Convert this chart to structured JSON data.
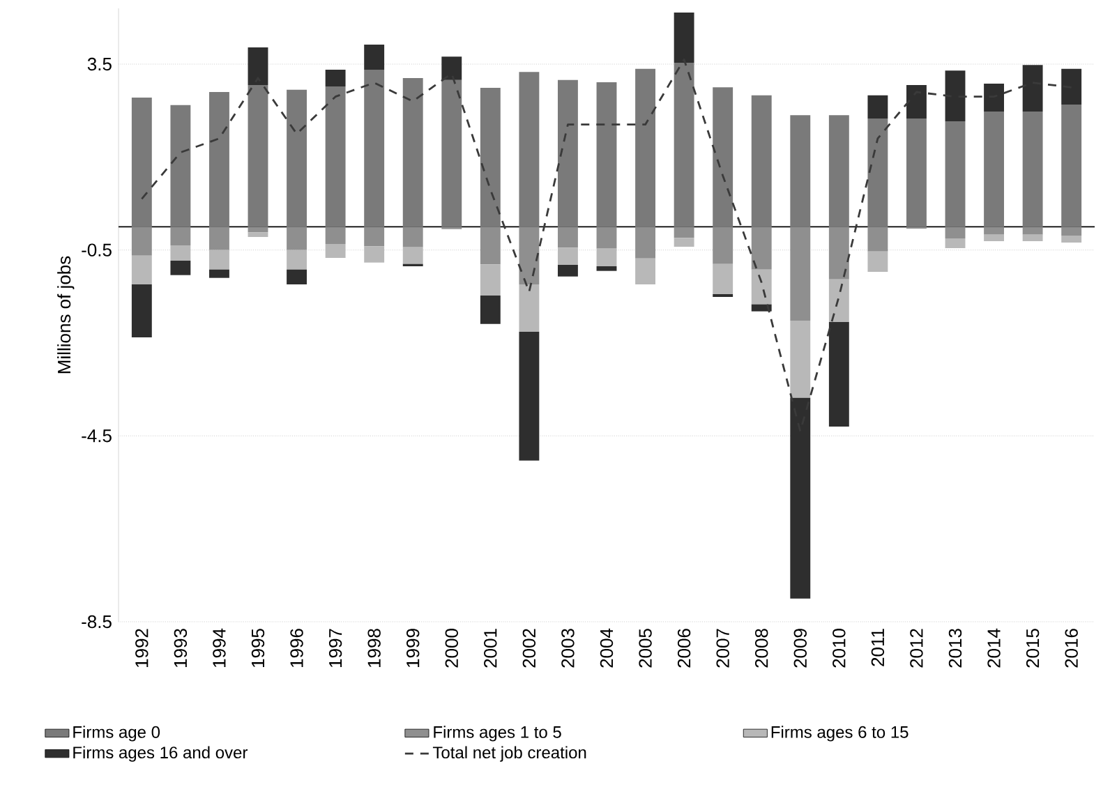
{
  "chart_data": {
    "type": "bar",
    "stacked": true,
    "ylabel": "Millions of jobs",
    "categories": [
      "1992",
      "1993",
      "1994",
      "1995",
      "1996",
      "1997",
      "1998",
      "1999",
      "2000",
      "2001",
      "2002",
      "2003",
      "2004",
      "2005",
      "2006",
      "2007",
      "2008",
      "2009",
      "2010",
      "2011",
      "2012",
      "2013",
      "2014",
      "2015",
      "2016"
    ],
    "series": [
      {
        "name": "Firms age 0",
        "color": "#7a7a7a",
        "values": [
          2.78,
          2.62,
          2.9,
          3.05,
          2.95,
          3.02,
          3.38,
          3.2,
          3.16,
          2.99,
          3.33,
          3.16,
          3.11,
          3.4,
          3.53,
          3.0,
          2.83,
          2.4,
          2.4,
          2.33,
          2.33,
          2.27,
          2.48,
          2.48,
          2.63
        ]
      },
      {
        "name": "Firms ages 1 to 5",
        "color": "#8f8f8f",
        "values": [
          -0.62,
          -0.4,
          -0.5,
          -0.12,
          -0.5,
          -0.37,
          -0.42,
          -0.44,
          -0.05,
          -0.81,
          -1.24,
          -0.45,
          -0.47,
          -0.68,
          -0.24,
          -0.8,
          -0.92,
          -2.02,
          -1.13,
          -0.53,
          -0.04,
          -0.25,
          -0.17,
          -0.17,
          -0.19
        ]
      },
      {
        "name": "Firms ages 6 to 15",
        "color": "#b8b8b8",
        "values": [
          -0.62,
          -0.33,
          -0.42,
          -0.1,
          -0.42,
          -0.3,
          -0.35,
          -0.36,
          0,
          -0.67,
          -1.02,
          -0.37,
          -0.38,
          -0.56,
          -0.19,
          -0.65,
          -0.75,
          -1.66,
          -0.92,
          -0.44,
          null,
          -0.21,
          -0.14,
          -0.14,
          -0.15
        ]
      },
      {
        "name": "Firms ages 16 and over",
        "color": "#2e2e2e",
        "values": [
          -1.14,
          -0.31,
          -0.18,
          0.81,
          -0.32,
          0.36,
          0.54,
          -0.05,
          0.5,
          -0.61,
          -2.77,
          -0.25,
          -0.1,
          0,
          1.08,
          -0.06,
          -0.15,
          -4.32,
          -2.25,
          0.5,
          0.72,
          1.09,
          0.6,
          1.0,
          0.77
        ]
      },
      {
        "name": "Total net job creation",
        "type": "line",
        "line_style": "dashed",
        "color": "#3a3a3a",
        "values": [
          0.6,
          1.6,
          1.9,
          3.2,
          2.0,
          2.8,
          3.1,
          2.7,
          3.3,
          0.8,
          -1.4,
          2.2,
          2.2,
          2.2,
          3.6,
          1.1,
          -1.2,
          -4.4,
          -1.5,
          1.9,
          2.9,
          2.8,
          2.8,
          3.1,
          3.0
        ]
      }
    ],
    "ylim": [
      -8.5,
      4.7
    ],
    "yticks": [
      3.5,
      -0.5,
      -4.5,
      -8.5
    ],
    "grid": "y",
    "legend": "bottom"
  }
}
